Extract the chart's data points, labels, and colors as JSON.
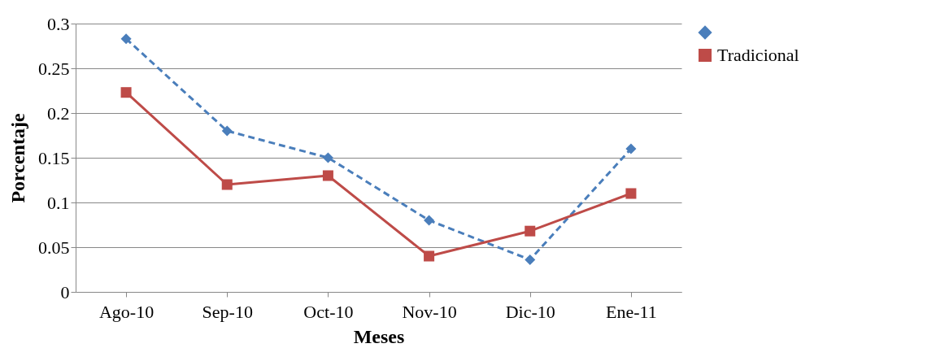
{
  "chart_data": {
    "type": "line",
    "xlabel": "Meses",
    "ylabel": "Porcentaje",
    "categories": [
      "Ago-10",
      "Sep-10",
      "Oct-10",
      "Nov-10",
      "Dic-10",
      "Ene-11"
    ],
    "series": [
      {
        "color": "#4a7ebb",
        "values": [
          0.283,
          0.18,
          0.15,
          0.08,
          0.036,
          0.16
        ],
        "marker": "diamond",
        "line_style": "dashed"
      },
      {
        "name": "Tradicional",
        "color": "#be4b48",
        "values": [
          0.223,
          0.12,
          0.13,
          0.04,
          0.068,
          0.11
        ],
        "marker": "square",
        "line_style": "solid"
      }
    ],
    "ylim": [
      0,
      0.3
    ],
    "yticks": [
      0,
      0.05,
      0.1,
      0.15,
      0.2,
      0.25,
      0.3
    ],
    "grid": "y",
    "legend": "right"
  }
}
